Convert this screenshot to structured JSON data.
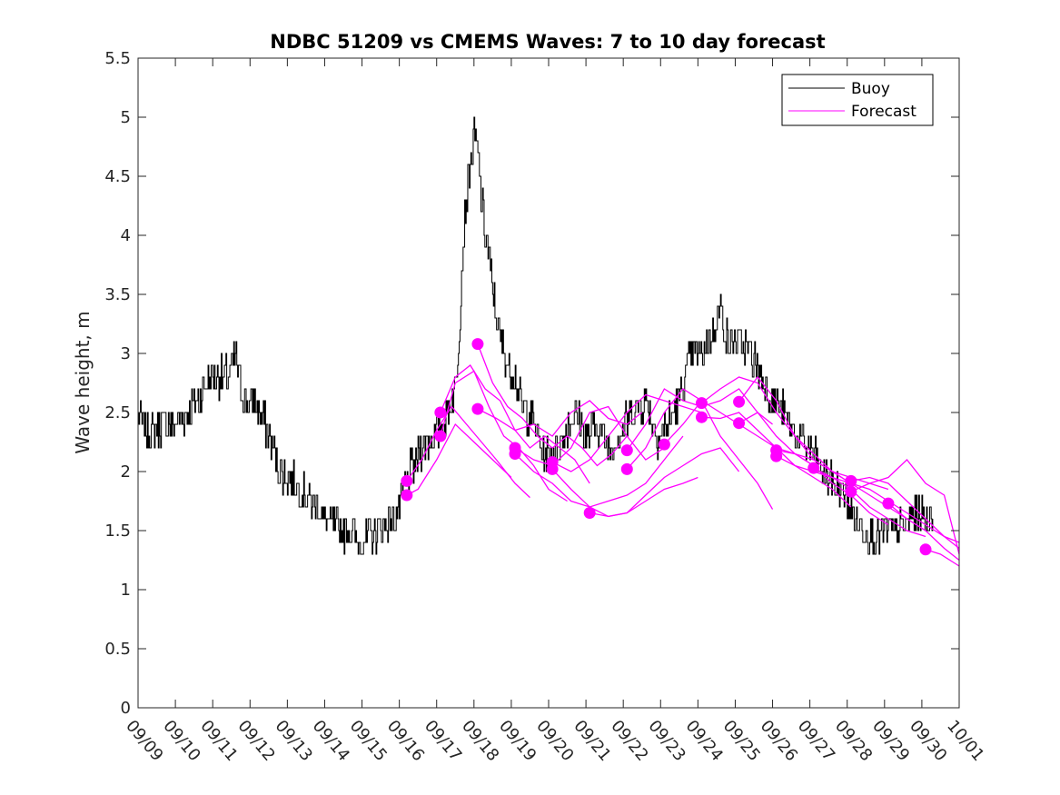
{
  "chart_data": {
    "type": "line",
    "title": "NDBC 51209 vs CMEMS Waves: 7 to 10 day forecast",
    "xlabel": "",
    "ylabel": "Wave height, m",
    "xlim": [
      0,
      22
    ],
    "ylim": [
      0,
      5.5
    ],
    "x_ticks": [
      "09/09",
      "09/10",
      "09/11",
      "09/12",
      "09/13",
      "09/14",
      "09/15",
      "09/16",
      "09/17",
      "09/18",
      "09/19",
      "09/20",
      "09/21",
      "09/22",
      "09/23",
      "09/24",
      "09/25",
      "09/26",
      "09/27",
      "09/28",
      "09/29",
      "09/30",
      "10/01"
    ],
    "y_ticks": [
      "0",
      "0.5",
      "1",
      "1.5",
      "2",
      "2.5",
      "3",
      "3.5",
      "4",
      "4.5",
      "5",
      "5.5"
    ],
    "legend": {
      "position": "top-right",
      "entries": [
        "Buoy",
        "Forecast"
      ]
    },
    "colors": {
      "buoy": "#000000",
      "forecast": "#ff00ff"
    },
    "buoy_keypoints": [
      [
        0.0,
        2.5
      ],
      [
        0.3,
        2.3
      ],
      [
        0.6,
        2.4
      ],
      [
        0.9,
        2.4
      ],
      [
        1.3,
        2.5
      ],
      [
        1.6,
        2.6
      ],
      [
        1.9,
        2.8
      ],
      [
        2.1,
        2.8
      ],
      [
        2.4,
        2.8
      ],
      [
        2.6,
        3.0
      ],
      [
        2.8,
        2.6
      ],
      [
        3.1,
        2.6
      ],
      [
        3.4,
        2.4
      ],
      [
        3.6,
        2.2
      ],
      [
        3.8,
        2.0
      ],
      [
        4.2,
        1.9
      ],
      [
        4.5,
        1.8
      ],
      [
        4.8,
        1.7
      ],
      [
        5.1,
        1.55
      ],
      [
        5.4,
        1.5
      ],
      [
        5.7,
        1.5
      ],
      [
        5.9,
        1.4
      ],
      [
        6.2,
        1.45
      ],
      [
        6.5,
        1.5
      ],
      [
        6.8,
        1.6
      ],
      [
        7.0,
        1.7
      ],
      [
        7.3,
        2.0
      ],
      [
        7.6,
        2.2
      ],
      [
        7.9,
        2.3
      ],
      [
        8.2,
        2.4
      ],
      [
        8.5,
        2.7
      ],
      [
        8.6,
        3.2
      ],
      [
        8.75,
        4.2
      ],
      [
        8.9,
        4.6
      ],
      [
        9.0,
        4.85
      ],
      [
        9.1,
        4.7
      ],
      [
        9.2,
        4.3
      ],
      [
        9.3,
        4.0
      ],
      [
        9.4,
        3.8
      ],
      [
        9.55,
        3.4
      ],
      [
        9.7,
        3.1
      ],
      [
        9.9,
        2.9
      ],
      [
        10.1,
        2.8
      ],
      [
        10.3,
        2.5
      ],
      [
        10.5,
        2.5
      ],
      [
        10.7,
        2.3
      ],
      [
        10.9,
        2.1
      ],
      [
        11.1,
        2.15
      ],
      [
        11.4,
        2.3
      ],
      [
        11.7,
        2.5
      ],
      [
        12.0,
        2.3
      ],
      [
        12.3,
        2.4
      ],
      [
        12.6,
        2.2
      ],
      [
        12.9,
        2.3
      ],
      [
        13.2,
        2.5
      ],
      [
        13.6,
        2.6
      ],
      [
        13.9,
        2.3
      ],
      [
        14.2,
        2.4
      ],
      [
        14.5,
        2.6
      ],
      [
        14.8,
        3.0
      ],
      [
        15.1,
        3.0
      ],
      [
        15.4,
        3.2
      ],
      [
        15.6,
        3.4
      ],
      [
        15.8,
        3.1
      ],
      [
        16.1,
        3.1
      ],
      [
        16.4,
        3.0
      ],
      [
        16.7,
        2.8
      ],
      [
        17.0,
        2.6
      ],
      [
        17.3,
        2.5
      ],
      [
        17.6,
        2.3
      ],
      [
        18.0,
        2.2
      ],
      [
        18.3,
        2.0
      ],
      [
        18.6,
        1.9
      ],
      [
        18.9,
        1.8
      ],
      [
        19.2,
        1.6
      ],
      [
        19.5,
        1.5
      ],
      [
        19.8,
        1.45
      ],
      [
        20.1,
        1.5
      ],
      [
        20.4,
        1.5
      ],
      [
        20.7,
        1.6
      ],
      [
        21.0,
        1.65
      ],
      [
        21.3,
        1.6
      ]
    ],
    "forecasts": [
      {
        "x": [
          7.2,
          7.5,
          8.0,
          8.5,
          9.0,
          9.5,
          10.0
        ],
        "y": [
          1.8,
          1.85,
          2.1,
          2.4,
          2.25,
          2.1,
          1.95
        ]
      },
      {
        "x": [
          7.2,
          7.6,
          8.0,
          8.4,
          8.8,
          9.2,
          9.6,
          10.1,
          10.5
        ],
        "y": [
          1.92,
          2.1,
          2.35,
          2.55,
          2.4,
          2.25,
          2.1,
          1.9,
          1.78
        ]
      },
      {
        "x": [
          8.1,
          8.5,
          9.0,
          9.4,
          9.8,
          10.2,
          10.6,
          11.0,
          11.5
        ],
        "y": [
          2.3,
          2.75,
          2.85,
          2.55,
          2.3,
          2.2,
          2.05,
          1.85,
          1.75
        ]
      },
      {
        "x": [
          8.1,
          8.5,
          8.9,
          9.3,
          9.7,
          10.1,
          10.5,
          10.9,
          11.3,
          11.7,
          12.1
        ],
        "y": [
          2.5,
          2.8,
          2.9,
          2.7,
          2.6,
          2.35,
          2.2,
          2.3,
          2.2,
          2.1,
          1.9
        ]
      },
      {
        "x": [
          9.1,
          9.5,
          9.9,
          10.3,
          10.7,
          11.1,
          11.5,
          11.9,
          12.3,
          12.7,
          13.1
        ],
        "y": [
          3.08,
          2.75,
          2.55,
          2.45,
          2.3,
          2.2,
          2.3,
          2.2,
          2.05,
          2.15,
          2.3
        ]
      },
      {
        "x": [
          9.1,
          9.6,
          10.1,
          10.6,
          11.1,
          11.6,
          12.1,
          12.6,
          13.1,
          13.5
        ],
        "y": [
          2.53,
          2.45,
          2.35,
          2.4,
          2.3,
          2.5,
          2.6,
          2.45,
          2.4,
          2.5
        ]
      },
      {
        "x": [
          10.1,
          10.6,
          11.1,
          11.6,
          12.1,
          12.6,
          13.1,
          13.6,
          14.1
        ],
        "y": [
          2.2,
          2.1,
          2.05,
          2.2,
          2.5,
          2.55,
          2.3,
          2.1,
          2.2
        ]
      },
      {
        "x": [
          10.1,
          10.6,
          11.1,
          11.6,
          12.1,
          12.6,
          13.1,
          13.6,
          14.1,
          14.6
        ],
        "y": [
          2.15,
          2.0,
          1.9,
          1.75,
          1.7,
          1.75,
          1.8,
          1.9,
          2.1,
          2.3
        ]
      },
      {
        "x": [
          11.1,
          11.6,
          12.1,
          12.6,
          13.1,
          13.6,
          14.1,
          14.6,
          15.1
        ],
        "y": [
          2.08,
          2.0,
          2.1,
          2.3,
          2.5,
          2.65,
          2.6,
          2.55,
          2.5
        ]
      },
      {
        "x": [
          11.1,
          11.6,
          12.1,
          12.6,
          13.1,
          13.6,
          14.1,
          14.6,
          15.0
        ],
        "y": [
          2.02,
          1.85,
          1.7,
          1.62,
          1.65,
          1.75,
          1.85,
          1.9,
          1.95
        ]
      },
      {
        "x": [
          12.1,
          12.6,
          13.1,
          13.6,
          14.1,
          14.6,
          15.1,
          15.6,
          16.1
        ],
        "y": [
          1.65,
          1.62,
          1.65,
          1.8,
          1.95,
          2.05,
          2.15,
          2.2,
          2.0
        ]
      },
      {
        "x": [
          13.1,
          13.6,
          14.1,
          14.6,
          15.1,
          15.6,
          16.1,
          16.6,
          17.0
        ],
        "y": [
          2.18,
          2.4,
          2.7,
          2.6,
          2.55,
          2.6,
          2.7,
          2.5,
          2.4
        ]
      },
      {
        "x": [
          13.1,
          13.6,
          14.1,
          14.6,
          15.1,
          15.6,
          16.1,
          16.6,
          17.0
        ],
        "y": [
          2.02,
          2.2,
          2.5,
          2.7,
          2.6,
          2.3,
          2.1,
          1.9,
          1.68
        ]
      },
      {
        "x": [
          14.1,
          14.6,
          15.1,
          15.6,
          16.1,
          16.6,
          17.1,
          17.6,
          18.1
        ],
        "y": [
          2.23,
          2.4,
          2.6,
          2.5,
          2.4,
          2.3,
          2.2,
          2.15,
          2.05
        ]
      },
      {
        "x": [
          15.1,
          15.6,
          16.1,
          16.6,
          17.1,
          17.6,
          18.1,
          18.6,
          19.1
        ],
        "y": [
          2.58,
          2.7,
          2.8,
          2.75,
          2.5,
          2.3,
          2.15,
          2.0,
          1.9
        ]
      },
      {
        "x": [
          15.1,
          15.6,
          16.1,
          16.6,
          17.1,
          17.6,
          18.1,
          18.6,
          19.1
        ],
        "y": [
          2.46,
          2.45,
          2.5,
          2.35,
          2.2,
          2.05,
          1.95,
          1.85,
          1.7
        ]
      },
      {
        "x": [
          16.1,
          16.6,
          17.1,
          17.6,
          18.1,
          18.6,
          19.1,
          19.6,
          20.1
        ],
        "y": [
          2.59,
          2.8,
          2.6,
          2.3,
          2.1,
          2.0,
          1.95,
          1.9,
          1.85
        ]
      },
      {
        "x": [
          16.1,
          16.6,
          17.1,
          17.6,
          18.1,
          18.6,
          19.1,
          19.6,
          20.1
        ],
        "y": [
          2.41,
          2.5,
          2.3,
          2.15,
          2.05,
          1.9,
          1.8,
          1.65,
          1.55
        ]
      },
      {
        "x": [
          17.1,
          17.6,
          18.1,
          18.6,
          19.1,
          19.6,
          20.1,
          20.6,
          21.1
        ],
        "y": [
          2.18,
          2.15,
          2.1,
          2.0,
          1.9,
          1.8,
          1.7,
          1.6,
          1.5
        ]
      },
      {
        "x": [
          17.1,
          17.6,
          18.1,
          18.6,
          19.1,
          19.6,
          20.1,
          20.6,
          21.1
        ],
        "y": [
          2.13,
          2.05,
          2.0,
          1.95,
          1.85,
          1.7,
          1.6,
          1.5,
          1.45
        ]
      },
      {
        "x": [
          18.1,
          18.6,
          19.1,
          19.6,
          20.1,
          20.6,
          21.1,
          21.6,
          22.0
        ],
        "y": [
          2.03,
          1.95,
          1.9,
          1.85,
          1.75,
          1.65,
          1.55,
          1.45,
          1.4
        ]
      },
      {
        "x": [
          19.1,
          19.6,
          20.1,
          20.6,
          21.1,
          21.6,
          22.0
        ],
        "y": [
          1.92,
          1.95,
          1.9,
          1.75,
          1.6,
          1.45,
          1.35
        ]
      },
      {
        "x": [
          19.1,
          19.6,
          20.1,
          20.6,
          21.1,
          21.6,
          22.0
        ],
        "y": [
          1.83,
          1.9,
          1.95,
          2.1,
          1.9,
          1.8,
          1.3
        ]
      },
      {
        "x": [
          20.1,
          20.6,
          21.1,
          21.6,
          22.0
        ],
        "y": [
          1.73,
          1.6,
          1.5,
          1.35,
          1.25
        ]
      },
      {
        "x": [
          21.1,
          21.5,
          22.0
        ],
        "y": [
          1.34,
          1.3,
          1.2
        ]
      }
    ]
  }
}
